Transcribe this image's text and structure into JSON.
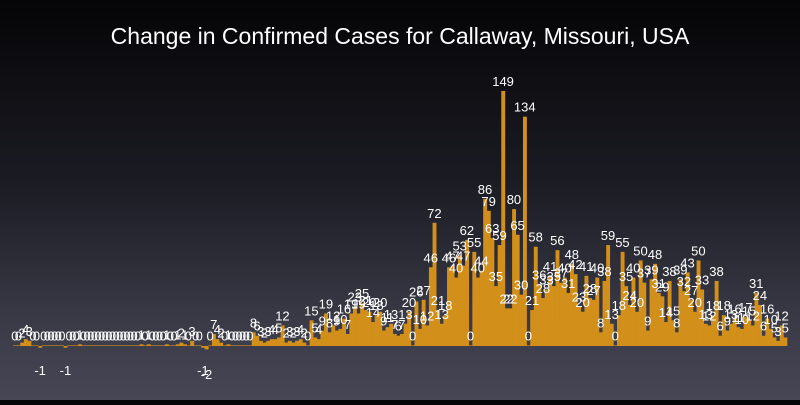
{
  "chart_data": {
    "type": "bar",
    "title": "Change in Confirmed Cases for Callaway, Missouri, USA",
    "xlabel": "",
    "ylabel": "",
    "grid": false,
    "legend": "none",
    "bar_color": "#d28f1a",
    "ylim": [
      -6,
      160
    ],
    "values": [
      0,
      0,
      2,
      4,
      3,
      0,
      0,
      -1,
      0,
      0,
      0,
      0,
      0,
      0,
      -1,
      0,
      0,
      0,
      1,
      0,
      0,
      0,
      0,
      0,
      0,
      0,
      0,
      0,
      0,
      0,
      0,
      0,
      0,
      0,
      0,
      1,
      0,
      1,
      0,
      0,
      0,
      0,
      1,
      0,
      0,
      1,
      2,
      1,
      0,
      3,
      0,
      0,
      -1,
      -2,
      0,
      7,
      4,
      2,
      0,
      1,
      0,
      0,
      0,
      0,
      0,
      0,
      8,
      6,
      3,
      2,
      3,
      4,
      4,
      5,
      12,
      2,
      3,
      2,
      3,
      4,
      2,
      0,
      15,
      5,
      4,
      9,
      19,
      8,
      12,
      9,
      10,
      16,
      7,
      19,
      23,
      19,
      25,
      21,
      20,
      14,
      18,
      20,
      9,
      11,
      13,
      7,
      6,
      7,
      13,
      20,
      0,
      26,
      10,
      27,
      12,
      46,
      72,
      21,
      13,
      18,
      46,
      47,
      40,
      53,
      47,
      62,
      0,
      55,
      40,
      44,
      86,
      79,
      63,
      35,
      59,
      149,
      22,
      22,
      80,
      65,
      30,
      134,
      0,
      21,
      58,
      36,
      28,
      33,
      41,
      35,
      56,
      37,
      40,
      31,
      48,
      42,
      23,
      20,
      41,
      28,
      27,
      40,
      8,
      38,
      59,
      13,
      0,
      18,
      55,
      35,
      24,
      40,
      20,
      50,
      37,
      9,
      39,
      48,
      31,
      29,
      14,
      38,
      15,
      8,
      39,
      32,
      43,
      27,
      20,
      50,
      33,
      13,
      12,
      18,
      38,
      6,
      18,
      9,
      13,
      16,
      11,
      10,
      17,
      15,
      12,
      31,
      24,
      6,
      16,
      10,
      5,
      3,
      12,
      5
    ]
  }
}
